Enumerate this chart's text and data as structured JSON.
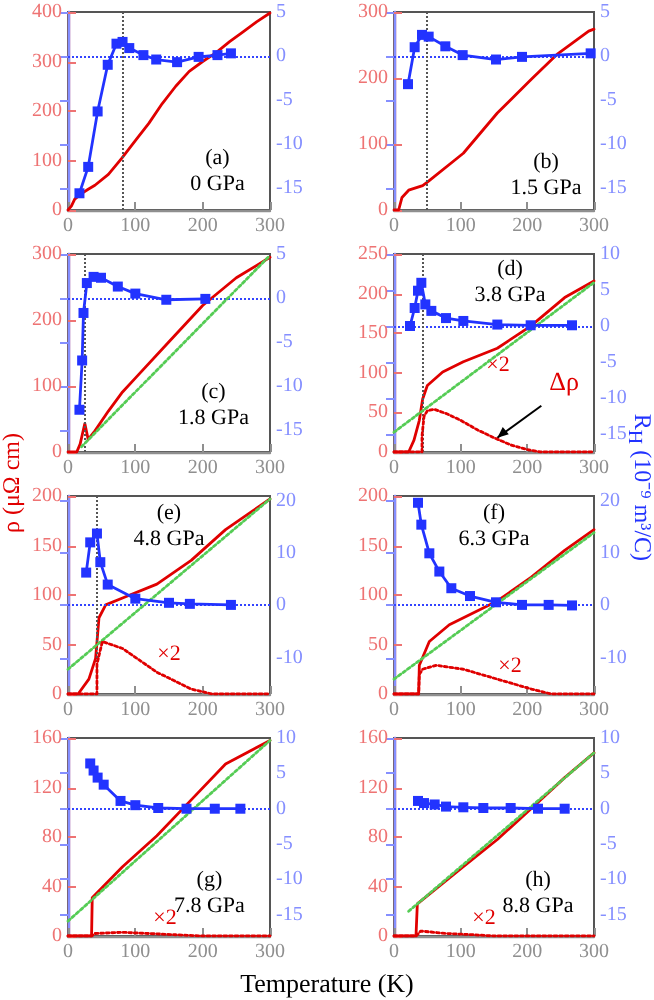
{
  "chart_data": [
    {
      "type": "line",
      "annotations": [
        "(a)",
        "0 GPa"
      ],
      "xlim": [
        0,
        300
      ],
      "xticks": [
        0,
        100,
        200,
        300
      ],
      "ylim": [
        0,
        400
      ],
      "yticks": [
        0,
        100,
        200,
        300,
        400
      ],
      "y2lim": [
        -17.5,
        5
      ],
      "y2ticks": [
        -15,
        -10,
        -5,
        0,
        5
      ],
      "series": [
        {
          "color": "#e00000",
          "marker": "none",
          "line_style": "solid",
          "x": [
            0,
            5,
            10,
            20,
            30,
            40,
            60,
            80,
            100,
            120,
            140,
            160,
            180,
            200,
            220,
            240,
            260,
            280,
            300
          ],
          "values": [
            0,
            8,
            22,
            33,
            42,
            50,
            72,
            105,
            140,
            175,
            215,
            250,
            280,
            300,
            318,
            340,
            360,
            380,
            398
          ]
        },
        {
          "color": "#2233ff",
          "marker": "square",
          "line_style": "solid",
          "axis": "y2",
          "x": [
            17,
            30,
            44,
            59,
            72,
            81,
            91,
            112,
            131,
            162,
            194,
            222,
            242
          ],
          "values": [
            -15.6,
            -12.6,
            -6.3,
            -1.0,
            1.4,
            1.6,
            0.9,
            0.1,
            -0.4,
            -0.7,
            -0.1,
            0.1,
            0.3
          ]
        }
      ],
      "ref_lines": [
        {
          "axis": "y2",
          "value": 0,
          "color": "#3344ff",
          "line_style": "dotted"
        },
        {
          "axis": "x",
          "value": 80,
          "color": "#555555",
          "line_style": "dotted"
        }
      ]
    },
    {
      "type": "line",
      "annotations": [
        "(b)",
        "1.5 GPa"
      ],
      "xlim": [
        0,
        300
      ],
      "xticks": [
        0,
        100,
        200,
        300
      ],
      "ylim": [
        0,
        300
      ],
      "yticks": [
        0,
        100,
        200,
        300
      ],
      "y2lim": [
        -17.5,
        5
      ],
      "y2ticks": [
        -15,
        -10,
        -5,
        0,
        5
      ],
      "series": [
        {
          "color": "#e00000",
          "marker": "none",
          "line_style": "solid",
          "x": [
            0,
            7,
            12,
            22,
            43,
            51,
            104,
            155,
            206,
            246,
            292,
            300
          ],
          "values": [
            0,
            0,
            19,
            30,
            37,
            43,
            86,
            147,
            198,
            237,
            271,
            274
          ]
        },
        {
          "color": "#2233ff",
          "marker": "square",
          "line_style": "solid",
          "axis": "y2",
          "x": [
            21,
            31,
            42,
            52,
            77,
            103,
            153,
            192,
            295
          ],
          "values": [
            -3.2,
            1.0,
            2.4,
            2.2,
            1.1,
            0.1,
            -0.4,
            -0.1,
            0.3
          ]
        }
      ],
      "ref_lines": [
        {
          "axis": "y2",
          "value": 0,
          "color": "#3344ff",
          "line_style": "dotted"
        },
        {
          "axis": "x",
          "value": 48,
          "color": "#555555",
          "line_style": "dotted"
        }
      ]
    },
    {
      "type": "line",
      "ylabel": "ρ (μΩ cm)",
      "annotations": [
        "(c)",
        "1.8 GPa"
      ],
      "xlim": [
        0,
        300
      ],
      "xticks": [
        0,
        100,
        200,
        300
      ],
      "ylim": [
        0,
        300
      ],
      "yticks": [
        0,
        100,
        200,
        300
      ],
      "y2lim": [
        -17.5,
        5
      ],
      "y2ticks": [
        -15,
        -10,
        -5,
        0,
        5
      ],
      "series": [
        {
          "color": "#55cc55",
          "marker": "none",
          "line_style": "dotted",
          "x": [
            20,
            300
          ],
          "values": [
            8,
            298
          ]
        },
        {
          "color": "#e00000",
          "marker": "none",
          "line_style": "solid",
          "x": [
            0,
            13,
            18,
            22,
            25,
            30,
            40,
            60,
            81,
            100,
            150,
            200,
            250,
            300
          ],
          "values": [
            0,
            0,
            12,
            30,
            43,
            19,
            32,
            62,
            91,
            112,
            167,
            222,
            264,
            295
          ]
        },
        {
          "color": "#2233ff",
          "marker": "square",
          "line_style": "solid",
          "axis": "y2",
          "x": [
            17,
            21,
            23,
            28,
            38,
            49,
            74,
            100,
            146,
            204
          ],
          "values": [
            -12.7,
            -7.1,
            -1.7,
            1.7,
            2.4,
            2.3,
            1.3,
            0.5,
            -0.2,
            -0.1
          ]
        }
      ],
      "ref_lines": [
        {
          "axis": "y2",
          "value": 0,
          "color": "#3344ff",
          "line_style": "dotted"
        },
        {
          "axis": "x",
          "value": 25,
          "color": "#555555",
          "line_style": "dotted"
        }
      ]
    },
    {
      "type": "line",
      "y2label": "R$_{H}$ (10⁻⁹ m³/C)",
      "annotations": [
        "(d)",
        "3.8 GPa",
        "×2",
        {
          "text": "Δρ",
          "x": 155,
          "y": 18
        }
      ],
      "xlim": [
        0,
        300
      ],
      "xticks": [
        0,
        100,
        200,
        300
      ],
      "ylim": [
        0,
        250
      ],
      "yticks": [
        0,
        50,
        100,
        150,
        200,
        250
      ],
      "y2lim": [
        -17.5,
        10
      ],
      "y2ticks": [
        -15,
        -10,
        -5,
        0,
        5,
        10
      ],
      "series": [
        {
          "color": "#55cc55",
          "marker": "none",
          "line_style": "dotted",
          "x": [
            0,
            300
          ],
          "values": [
            25,
            214
          ]
        },
        {
          "color": "#e00000",
          "marker": "none",
          "line_style": "solid",
          "x": [
            0,
            22,
            30,
            38,
            43,
            50,
            73,
            104,
            155,
            205,
            256,
            300
          ],
          "values": [
            0,
            0,
            15,
            40,
            67,
            84,
            101,
            114,
            131,
            159,
            195,
            216
          ]
        },
        {
          "color": "#e00000",
          "marker": "none",
          "line_style": "dotted",
          "x": [
            0,
            42,
            42,
            45,
            50,
            60,
            80,
            100,
            125,
            150,
            175,
            200,
            220,
            300
          ],
          "values": [
            0,
            0,
            20,
            45,
            52,
            54,
            48,
            40,
            28,
            18,
            9,
            3,
            0,
            0
          ]
        },
        {
          "color": "#2233ff",
          "marker": "square",
          "line_style": "solid",
          "axis": "y2",
          "x": [
            24,
            31,
            36,
            41,
            47,
            56,
            78,
            104,
            155,
            205,
            267
          ],
          "values": [
            0,
            2.5,
            4.9,
            6.0,
            3.0,
            2.1,
            1.1,
            0.7,
            0.2,
            0.1,
            0.1
          ]
        }
      ],
      "ref_lines": [
        {
          "axis": "y2",
          "value": 0,
          "color": "#3344ff",
          "line_style": "dotted"
        },
        {
          "axis": "x",
          "value": 42,
          "color": "#555555",
          "line_style": "dotted"
        }
      ]
    },
    {
      "type": "line",
      "annotations": [
        "(e)",
        "4.8 GPa",
        "×2"
      ],
      "xlim": [
        0,
        300
      ],
      "xticks": [
        0,
        100,
        200,
        300
      ],
      "ylim": [
        0,
        200
      ],
      "yticks": [
        0,
        50,
        100,
        150,
        200
      ],
      "y2lim": [
        -17,
        21
      ],
      "y2ticks": [
        -10,
        0,
        10,
        20
      ],
      "series": [
        {
          "color": "#55cc55",
          "marker": "none",
          "line_style": "dotted",
          "x": [
            0,
            300
          ],
          "values": [
            25,
            197
          ]
        },
        {
          "color": "#e00000",
          "marker": "none",
          "line_style": "solid",
          "x": [
            0,
            15,
            31,
            41,
            46,
            56,
            81,
            132,
            183,
            234,
            300
          ],
          "values": [
            0,
            0,
            15,
            36,
            77,
            90,
            97,
            111,
            135,
            166,
            197
          ]
        },
        {
          "color": "#e00000",
          "marker": "none",
          "line_style": "dotted",
          "x": [
            0,
            43,
            43,
            51,
            81,
            132,
            183,
            214,
            300
          ],
          "values": [
            0,
            0,
            30,
            53,
            46,
            22,
            5,
            0,
            0
          ]
        },
        {
          "color": "#2233ff",
          "marker": "square",
          "line_style": "solid",
          "axis": "y2",
          "x": [
            27,
            33,
            43,
            48,
            59,
            100,
            150,
            181,
            242
          ],
          "values": [
            6.3,
            12.1,
            13.8,
            8.3,
            4.0,
            1.3,
            0.5,
            0.3,
            0.1
          ]
        }
      ],
      "ref_lines": [
        {
          "axis": "y2",
          "value": 0,
          "color": "#3344ff",
          "line_style": "dotted"
        },
        {
          "axis": "x",
          "value": 43,
          "color": "#555555",
          "line_style": "dotted"
        }
      ]
    },
    {
      "type": "line",
      "annotations": [
        "(f)",
        "6.3 GPa",
        "×2"
      ],
      "xlim": [
        0,
        300
      ],
      "xticks": [
        0,
        100,
        200,
        300
      ],
      "ylim": [
        0,
        200
      ],
      "yticks": [
        0,
        50,
        100,
        150,
        200
      ],
      "y2lim": [
        -17,
        21
      ],
      "y2ticks": [
        -10,
        0,
        10,
        20
      ],
      "series": [
        {
          "color": "#55cc55",
          "marker": "none",
          "line_style": "dotted",
          "x": [
            0,
            300
          ],
          "values": [
            15,
            163
          ]
        },
        {
          "color": "#e00000",
          "marker": "none",
          "line_style": "solid",
          "x": [
            0,
            37,
            38,
            53,
            83,
            155,
            206,
            256,
            300
          ],
          "values": [
            0,
            0,
            29,
            53,
            70,
            94,
            118,
            145,
            166
          ]
        },
        {
          "color": "#e00000",
          "marker": "none",
          "line_style": "dotted",
          "x": [
            0,
            37,
            38,
            43,
            63,
            104,
            155,
            206,
            236,
            300
          ],
          "values": [
            0,
            0,
            20,
            25,
            29,
            25,
            15,
            5,
            0,
            0
          ]
        },
        {
          "color": "#2233ff",
          "marker": "square",
          "line_style": "solid",
          "axis": "y2",
          "x": [
            36,
            41,
            53,
            68,
            86,
            114,
            153,
            192,
            232,
            267
          ],
          "values": [
            19.7,
            15.5,
            10,
            6.5,
            3.3,
            1.8,
            0.6,
            0.1,
            0.1,
            0
          ]
        }
      ],
      "ref_lines": [
        {
          "axis": "y2",
          "value": 0,
          "color": "#3344ff",
          "line_style": "dotted"
        }
      ]
    },
    {
      "type": "line",
      "xlabel": "Temperature (K)",
      "annotations": [
        "(g)",
        "7.8 GPa",
        "×2"
      ],
      "xlim": [
        0,
        300
      ],
      "xticks": [
        0,
        100,
        200,
        300
      ],
      "ylim": [
        0,
        160
      ],
      "yticks": [
        0,
        40,
        80,
        120,
        160
      ],
      "y2lim": [
        -18,
        10
      ],
      "y2ticks": [
        -15,
        -10,
        -5,
        0,
        5,
        10
      ],
      "series": [
        {
          "color": "#55cc55",
          "marker": "none",
          "line_style": "dotted",
          "x": [
            0,
            300
          ],
          "values": [
            12,
            158
          ]
        },
        {
          "color": "#e00000",
          "marker": "none",
          "line_style": "solid",
          "x": [
            0,
            35,
            36,
            81,
            132,
            183,
            234,
            300
          ],
          "values": [
            0,
            0,
            31,
            56,
            81,
            110,
            139,
            158
          ]
        },
        {
          "color": "#e00000",
          "marker": "none",
          "line_style": "dotted",
          "x": [
            0,
            35,
            40,
            80,
            120,
            160,
            200,
            300
          ],
          "values": [
            0,
            0,
            2,
            3,
            2,
            1,
            0,
            0
          ]
        },
        {
          "color": "#2233ff",
          "marker": "square",
          "line_style": "solid",
          "axis": "y2",
          "x": [
            33,
            38,
            44,
            53,
            78,
            100,
            134,
            176,
            218,
            256
          ],
          "values": [
            6.4,
            5.4,
            4.4,
            3.4,
            1.1,
            0.5,
            0.1,
            0,
            0,
            0
          ]
        }
      ],
      "ref_lines": [
        {
          "axis": "y2",
          "value": 0,
          "color": "#3344ff",
          "line_style": "dotted"
        }
      ]
    },
    {
      "type": "line",
      "annotations": [
        "(h)",
        "8.8 GPa",
        "×2"
      ],
      "xlim": [
        0,
        300
      ],
      "xticks": [
        0,
        100,
        200,
        300
      ],
      "ylim": [
        0,
        160
      ],
      "yticks": [
        0,
        40,
        80,
        120,
        160
      ],
      "y2lim": [
        -18,
        10
      ],
      "y2ticks": [
        -15,
        -10,
        -5,
        0,
        5,
        10
      ],
      "series": [
        {
          "color": "#55cc55",
          "marker": "none",
          "line_style": "dotted",
          "x": [
            22,
            300
          ],
          "values": [
            20,
            148
          ]
        },
        {
          "color": "#e00000",
          "marker": "none",
          "line_style": "solid",
          "x": [
            0,
            33,
            35,
            104,
            155,
            206,
            256,
            300
          ],
          "values": [
            0,
            0,
            26,
            56,
            78,
            103,
            128,
            148
          ]
        },
        {
          "color": "#e00000",
          "marker": "none",
          "line_style": "dotted",
          "x": [
            0,
            33,
            40,
            80,
            120,
            150,
            300
          ],
          "values": [
            0,
            0,
            4,
            2,
            1,
            0,
            0
          ]
        },
        {
          "color": "#2233ff",
          "marker": "square",
          "line_style": "solid",
          "axis": "y2",
          "x": [
            36,
            45,
            61,
            78,
            104,
            134,
            175,
            216,
            256
          ],
          "values": [
            1.1,
            0.8,
            0.6,
            0.3,
            0.2,
            0.1,
            0.1,
            0,
            0
          ]
        }
      ],
      "ref_lines": [
        {
          "axis": "y2",
          "value": 0,
          "color": "#3344ff",
          "line_style": "dotted"
        }
      ]
    }
  ]
}
